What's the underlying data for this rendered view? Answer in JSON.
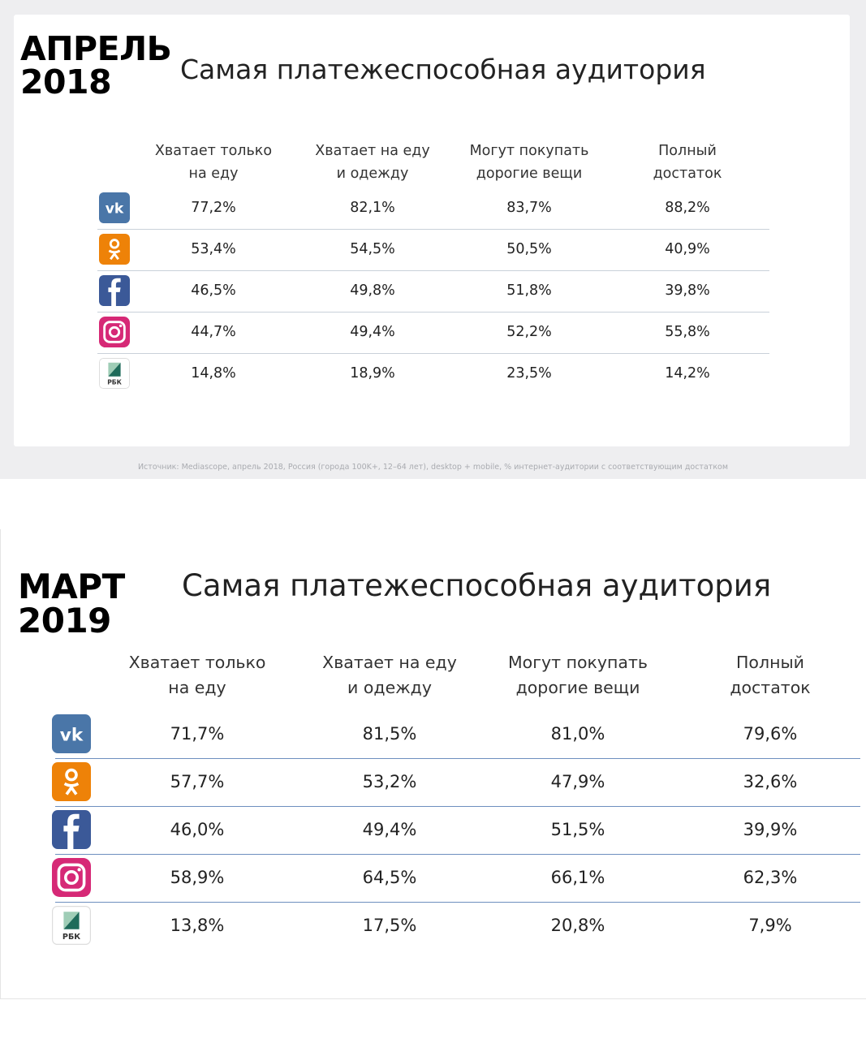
{
  "panels": [
    {
      "period_line1": "АПРЕЛЬ",
      "period_line2": "2018",
      "title": "Самая платежеспособная аудитория",
      "source": "Источник: Mediascope, апрель 2018, Россия (города 100K+, 12–64 лет), desktop + mobile, % интернет-аудитории с соответствующим достатком"
    },
    {
      "period_line1": "МАРТ",
      "period_line2": "2019",
      "title": "Самая платежеспособная аудитория"
    }
  ],
  "icons": [
    {
      "name": "vk-icon",
      "color": "#4a76a8"
    },
    {
      "name": "odnoklassniki-icon",
      "color": "#ee8208"
    },
    {
      "name": "facebook-icon",
      "color": "#3b5998"
    },
    {
      "name": "instagram-icon",
      "color": "#d62976"
    },
    {
      "name": "rbc-icon",
      "color": "#1f6b5a",
      "label": "РБК"
    }
  ],
  "colors": {
    "divider_2018": "#c9d1d9",
    "divider_2019": "#6e8fbf",
    "background_2018": "#eeeef0"
  },
  "chart_data": [
    {
      "type": "table",
      "title": "Самая платежеспособная аудитория",
      "columns": [
        [
          "Хватает только",
          "на еду"
        ],
        [
          "Хватает на еду",
          "и одежду"
        ],
        [
          "Могут покупать",
          "дорогие вещи"
        ],
        [
          "Полный",
          "достаток"
        ]
      ],
      "rows": [
        {
          "icon": "vk-icon",
          "values": [
            "77,2%",
            "82,1%",
            "83,7%",
            "88,2%"
          ]
        },
        {
          "icon": "odnoklassniki-icon",
          "values": [
            "53,4%",
            "54,5%",
            "50,5%",
            "40,9%"
          ]
        },
        {
          "icon": "facebook-icon",
          "values": [
            "46,5%",
            "49,8%",
            "51,8%",
            "39,8%"
          ]
        },
        {
          "icon": "instagram-icon",
          "values": [
            "44,7%",
            "49,4%",
            "52,2%",
            "55,8%"
          ]
        },
        {
          "icon": "rbc-icon",
          "values": [
            "14,8%",
            "18,9%",
            "23,5%",
            "14,2%"
          ]
        }
      ]
    },
    {
      "type": "table",
      "title": "Самая платежеспособная аудитория",
      "columns": [
        [
          "Хватает только",
          "на еду"
        ],
        [
          "Хватает на еду",
          "и одежду"
        ],
        [
          "Могут покупать",
          "дорогие вещи"
        ],
        [
          "Полный",
          "достаток"
        ]
      ],
      "rows": [
        {
          "icon": "vk-icon",
          "values": [
            "71,7%",
            "81,5%",
            "81,0%",
            "79,6%"
          ]
        },
        {
          "icon": "odnoklassniki-icon",
          "values": [
            "57,7%",
            "53,2%",
            "47,9%",
            "32,6%"
          ]
        },
        {
          "icon": "facebook-icon",
          "values": [
            "46,0%",
            "49,4%",
            "51,5%",
            "39,9%"
          ]
        },
        {
          "icon": "instagram-icon",
          "values": [
            "58,9%",
            "64,5%",
            "66,1%",
            "62,3%"
          ]
        },
        {
          "icon": "rbc-icon",
          "values": [
            "13,8%",
            "17,5%",
            "20,8%",
            "7,9%"
          ]
        }
      ]
    }
  ]
}
